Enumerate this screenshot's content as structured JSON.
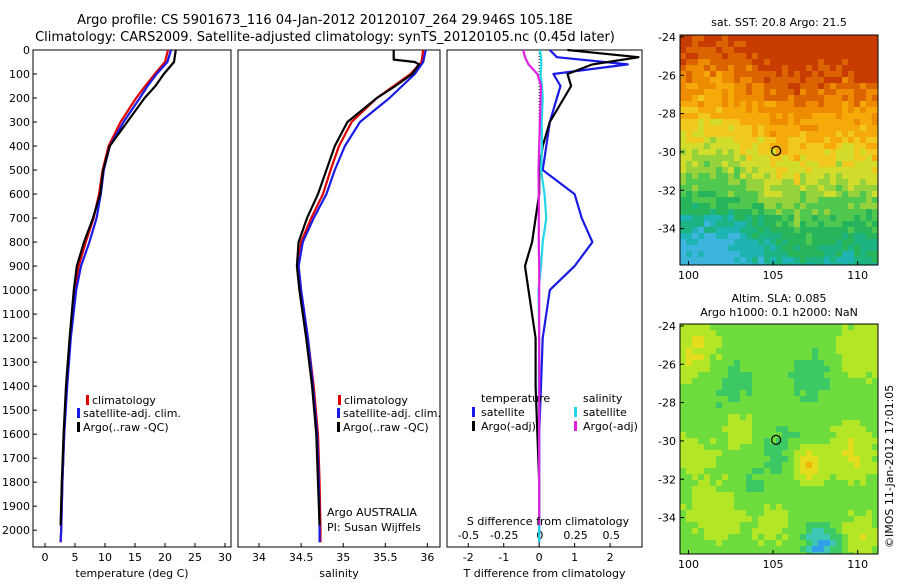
{
  "header": {
    "line1": "Argo profile: CS 5901673_116 04-Jan-2012 20120107_264 29.946S 105.18E",
    "line2": "Climatology: CARS2009. Satellite-adjusted climatology: synTS_20120105.nc (0.45d later)"
  },
  "colors": {
    "red": "#e00000",
    "blue": "#1a1ae6",
    "black": "#000000",
    "cyan": "#22d8e8",
    "magenta": "#e020e0"
  },
  "legend_profiles": {
    "climatology": "climatology",
    "satellite": "satellite-adj. clim.",
    "argo": "Argo(..raw -QC)"
  },
  "legend_diff": {
    "temperature_title": "temperature",
    "salinity_title": "salinity",
    "t_sat": "satellite",
    "t_argo": "Argo(-adj)",
    "s_sat": "satellite",
    "s_argo": "Argo(-adj)"
  },
  "institution": {
    "line1": "Argo AUSTRALIA",
    "line2": "PI: Susan Wijffels"
  },
  "diff_top_label": "S difference from climatology",
  "sst_panel": {
    "title": "sat. SST: 20.8 Argo: 21.5"
  },
  "sla_panel": {
    "title1": "Altim. SLA: 0.085",
    "title2": "Argo h1000: 0.1 h2000: NaN"
  },
  "footer_stamp": "©IMOS 11-Jan-2012 17:01:05",
  "chart_data": [
    {
      "type": "line",
      "xlabel": "temperature (deg C)",
      "xlim": [
        -2,
        31
      ],
      "ylim": [
        2070,
        0
      ],
      "xticks": [
        0,
        5,
        10,
        15,
        20,
        25,
        30
      ],
      "yticks": [
        0,
        100,
        200,
        300,
        400,
        500,
        600,
        700,
        800,
        900,
        1000,
        1100,
        1200,
        1300,
        1400,
        1500,
        1600,
        1700,
        1800,
        1900,
        2000
      ],
      "series": [
        {
          "name": "climatology",
          "color": "red",
          "depth": [
            0,
            50,
            100,
            150,
            200,
            300,
            400,
            500,
            600,
            700,
            800,
            900,
            1000,
            1200,
            1400,
            1600,
            1800,
            2000,
            2050
          ],
          "values": [
            20.5,
            20.0,
            18.3,
            16.7,
            15.2,
            12.6,
            10.6,
            9.6,
            9.0,
            8.1,
            6.8,
            5.6,
            5.0,
            4.2,
            3.6,
            3.2,
            2.9,
            2.7,
            2.6
          ]
        },
        {
          "name": "satellite-adj. clim.",
          "color": "blue",
          "depth": [
            0,
            50,
            100,
            150,
            200,
            300,
            400,
            500,
            600,
            700,
            800,
            900,
            1000,
            1200,
            1400,
            1600,
            1800,
            2000,
            2050
          ],
          "values": [
            21.0,
            20.4,
            18.6,
            17.1,
            15.8,
            13.1,
            10.8,
            9.8,
            9.3,
            8.6,
            7.4,
            6.0,
            5.2,
            4.3,
            3.7,
            3.2,
            2.9,
            2.7,
            2.6
          ]
        },
        {
          "name": "Argo(..raw -QC)",
          "color": "black",
          "depth": [
            0,
            50,
            100,
            150,
            200,
            300,
            400,
            500,
            600,
            700,
            800,
            900,
            1000,
            1200,
            1400,
            1600,
            1800,
            1980
          ],
          "values": [
            21.8,
            21.5,
            19.8,
            18.4,
            16.6,
            13.7,
            10.8,
            9.7,
            9.2,
            8.0,
            6.5,
            5.3,
            4.8,
            4.1,
            3.5,
            3.1,
            2.8,
            2.6
          ]
        }
      ]
    },
    {
      "type": "line",
      "xlabel": "salinity",
      "xlim": [
        33.75,
        36.15
      ],
      "ylim": [
        2070,
        0
      ],
      "xticks": [
        34,
        34.5,
        35,
        35.5,
        36
      ],
      "xticklabels": [
        "34",
        "34.5",
        "35",
        "35.5",
        "36"
      ],
      "series": [
        {
          "name": "climatology",
          "color": "red",
          "depth": [
            0,
            50,
            100,
            150,
            200,
            300,
            400,
            500,
            600,
            700,
            800,
            900,
            1000,
            1200,
            1400,
            1600,
            1800,
            2000,
            2050
          ],
          "values": [
            35.95,
            35.93,
            35.8,
            35.6,
            35.4,
            35.1,
            34.95,
            34.85,
            34.76,
            34.62,
            34.5,
            34.47,
            34.5,
            34.58,
            34.65,
            34.7,
            34.72,
            34.73,
            34.73
          ]
        },
        {
          "name": "satellite-adj. clim.",
          "color": "blue",
          "depth": [
            0,
            50,
            100,
            150,
            200,
            300,
            400,
            500,
            600,
            700,
            800,
            900,
            1000,
            1200,
            1400,
            1600,
            1800,
            2000,
            2050
          ],
          "values": [
            35.98,
            35.95,
            35.85,
            35.7,
            35.55,
            35.2,
            35.02,
            34.9,
            34.8,
            34.65,
            34.52,
            34.47,
            34.5,
            34.58,
            34.64,
            34.69,
            34.71,
            34.72,
            34.72
          ]
        },
        {
          "name": "Argo(..raw -QC)",
          "color": "black",
          "depth": [
            0,
            40,
            50,
            60,
            100,
            150,
            200,
            300,
            400,
            500,
            600,
            700,
            800,
            900,
            1000,
            1200,
            1400,
            1600,
            1800,
            1980
          ],
          "values": [
            35.6,
            35.6,
            35.85,
            35.9,
            35.82,
            35.62,
            35.4,
            35.05,
            34.9,
            34.8,
            34.7,
            34.57,
            34.47,
            34.45,
            34.48,
            34.56,
            34.63,
            34.68,
            34.7,
            34.72
          ]
        }
      ]
    },
    {
      "type": "line",
      "xlabel": "T difference from climatology",
      "top_label": "S difference from climatology",
      "xlim": [
        -2.6,
        2.9
      ],
      "ylim": [
        2070,
        0
      ],
      "xticks": [
        -2,
        -1,
        0,
        1,
        2
      ],
      "top_xticks": [
        -0.5,
        -0.25,
        0,
        0.25,
        0.5
      ],
      "top_xticklabels": [
        "-0.5",
        "-0.25",
        "0",
        "0.25",
        "0.5"
      ],
      "series": [
        {
          "name": "temperature satellite",
          "color": "blue",
          "depth": [
            0,
            30,
            60,
            100,
            150,
            200,
            300,
            400,
            500,
            600,
            700,
            800,
            900,
            1000,
            1200,
            1400,
            1600,
            1800,
            2000,
            2050
          ],
          "values": [
            0.3,
            0.5,
            2.5,
            0.4,
            0.6,
            0.5,
            0.3,
            0.2,
            0.1,
            1.0,
            1.2,
            1.5,
            1.0,
            0.3,
            0.1,
            0.05,
            0.0,
            0.0,
            0.0,
            0.0
          ]
        },
        {
          "name": "temperature Argo(-adj)",
          "color": "black",
          "depth": [
            0,
            30,
            60,
            100,
            150,
            200,
            300,
            400,
            500,
            600,
            700,
            800,
            850,
            900,
            1000,
            1200,
            1400,
            1600,
            1800,
            1980
          ],
          "values": [
            0.8,
            2.8,
            1.5,
            0.8,
            0.9,
            0.7,
            0.3,
            0.1,
            0.0,
            0.0,
            -0.1,
            -0.2,
            -0.3,
            -0.4,
            -0.3,
            -0.1,
            -0.1,
            -0.05,
            0.0,
            0.0
          ]
        },
        {
          "name": "salinity satellite",
          "color": "cyan",
          "depth": [
            0,
            30,
            60,
            100,
            150,
            200,
            300,
            400,
            500,
            600,
            700,
            800,
            900,
            1000,
            1200,
            1400,
            1600,
            1800,
            2000,
            2050
          ],
          "values": [
            0.02,
            0.05,
            0.06,
            0.04,
            0.08,
            0.1,
            0.07,
            0.08,
            0.05,
            0.15,
            0.2,
            0.1,
            0.05,
            -0.02,
            0.0,
            -0.01,
            0.0,
            0.0,
            0.0,
            0.0
          ]
        },
        {
          "name": "salinity Argo(-adj)",
          "color": "magenta",
          "depth": [
            0,
            30,
            60,
            100,
            150,
            200,
            300,
            400,
            500,
            600,
            700,
            800,
            900,
            1000,
            1200,
            1400,
            1600,
            1800,
            1980
          ],
          "values": [
            -0.45,
            -0.4,
            -0.3,
            -0.05,
            0.05,
            0.04,
            0.02,
            0.0,
            -0.02,
            -0.01,
            -0.01,
            -0.01,
            0.0,
            0.0,
            0.0,
            0.0,
            0.0,
            0.0,
            0.0
          ]
        }
      ]
    },
    {
      "type": "heatmap",
      "title": "sat. SST: 20.8 Argo: 21.5",
      "xlim": [
        99.5,
        111.2
      ],
      "ylim": [
        -35.9,
        -23.9
      ],
      "xticks": [
        100,
        105,
        110
      ],
      "yticks": [
        -24,
        -26,
        -28,
        -30,
        -32,
        -34
      ],
      "marker": {
        "lon": 105.18,
        "lat": -29.946
      }
    },
    {
      "type": "heatmap",
      "title": "Altim. SLA: 0.085",
      "xlim": [
        99.5,
        111.2
      ],
      "ylim": [
        -35.9,
        -23.9
      ],
      "xticks": [
        100,
        105,
        110
      ],
      "yticks": [
        -24,
        -26,
        -28,
        -30,
        -32,
        -34
      ],
      "marker": {
        "lon": 105.18,
        "lat": -29.946
      }
    }
  ]
}
